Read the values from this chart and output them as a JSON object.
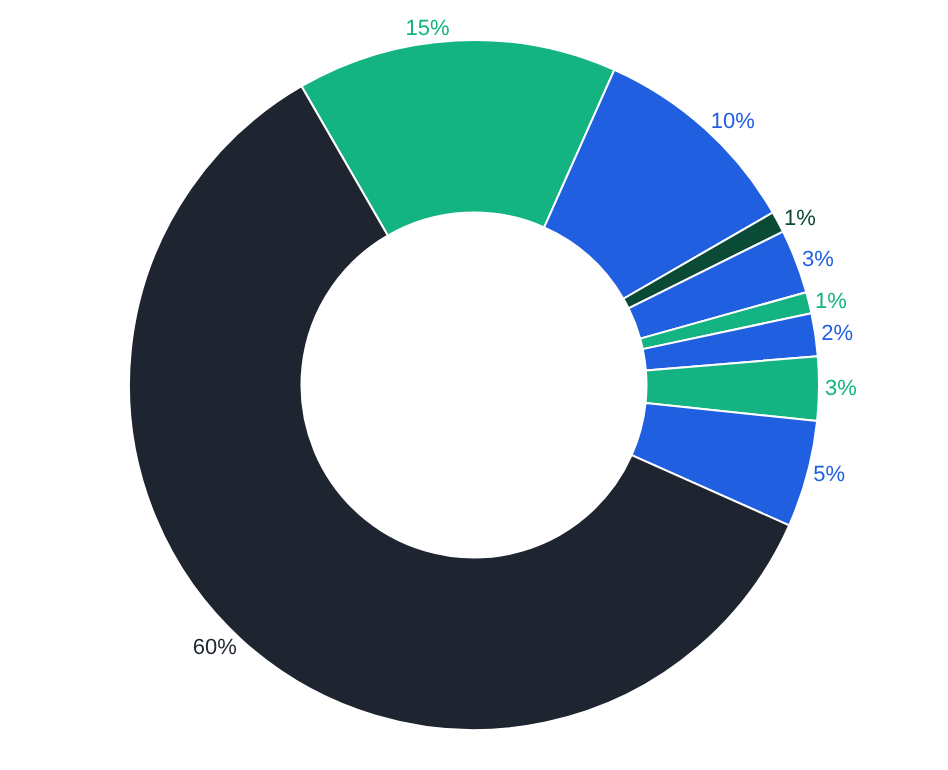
{
  "chart_data": {
    "type": "donut",
    "categories": [
      null,
      null,
      null,
      null,
      null,
      null,
      null,
      null,
      null
    ],
    "values": [
      15,
      10,
      1,
      3,
      1,
      2,
      3,
      5,
      60
    ],
    "value_labels": [
      "15%",
      "10%",
      "1%",
      "3%",
      "1%",
      "2%",
      "3%",
      "5%",
      "60%"
    ],
    "colors": [
      "#14b482",
      "#1f5fe0",
      "#0b4a36",
      "#1f5fe0",
      "#14b482",
      "#1f5fe0",
      "#14b482",
      "#1f5fe0",
      "#1e2530"
    ],
    "legend": false
  }
}
